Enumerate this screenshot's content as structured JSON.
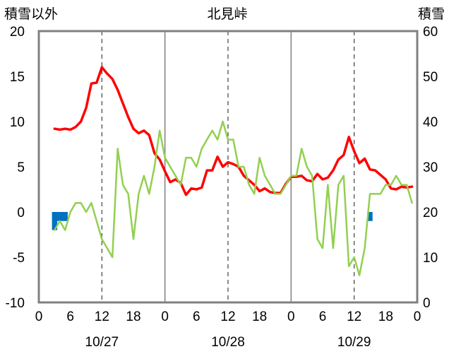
{
  "chart_data": {
    "type": "line",
    "title": "北見峠",
    "left_axis_label": "積雪以外",
    "right_axis_label": "積雪",
    "left_ylim": [
      -10,
      20
    ],
    "left_yticks": [
      "20",
      "15",
      "10",
      "5",
      "0",
      "-5",
      "-10"
    ],
    "right_ylim": [
      0,
      60
    ],
    "right_yticks": [
      "60",
      "50",
      "40",
      "30",
      "20",
      "10",
      "0"
    ],
    "xlim": [
      0,
      72
    ],
    "xtick_labels": [
      "0",
      "6",
      "12",
      "18",
      "0",
      "6",
      "12",
      "18",
      "0",
      "6",
      "12",
      "18",
      "0"
    ],
    "date_labels": [
      {
        "hour": 12,
        "text": "10/27"
      },
      {
        "hour": 36,
        "text": "10/28"
      },
      {
        "hour": 60,
        "text": "10/29"
      }
    ],
    "grid": "vertical lines: solid at 0h (day boundary), dashed at 12h",
    "series": [
      {
        "color": "#ff0000",
        "axis": "left",
        "x": [
          3,
          4,
          5,
          6,
          7,
          8,
          9,
          10,
          11,
          12,
          13,
          14,
          15,
          16,
          17,
          18,
          19,
          20,
          21,
          22,
          23,
          24,
          25,
          26,
          27,
          28,
          29,
          30,
          31,
          32,
          33,
          34,
          35,
          36,
          37,
          38,
          39,
          40,
          41,
          42,
          43,
          44,
          45,
          46,
          47,
          48,
          49,
          50,
          51,
          52,
          53,
          54,
          55,
          56,
          57,
          58,
          59,
          60,
          61,
          62,
          63,
          64,
          65,
          66,
          67,
          68,
          69,
          70,
          71
        ],
        "values": [
          9.2,
          9.1,
          9.2,
          9.1,
          9.4,
          10.0,
          11.5,
          14.2,
          14.3,
          16.0,
          15.3,
          14.7,
          13.5,
          12.0,
          10.5,
          9.2,
          8.7,
          9.0,
          8.5,
          6.5,
          5.8,
          4.5,
          3.3,
          3.6,
          3.2,
          1.9,
          2.6,
          2.5,
          2.7,
          4.6,
          4.6,
          6.1,
          5.0,
          5.5,
          5.3,
          5.0,
          4.0,
          3.5,
          3.0,
          2.3,
          2.6,
          2.2,
          2.1,
          2.1,
          3.1,
          3.9,
          3.9,
          4.0,
          3.5,
          3.4,
          4.2,
          3.6,
          3.8,
          4.6,
          5.8,
          6.3,
          8.3,
          6.7,
          5.4,
          5.9,
          4.7,
          4.6,
          4.1,
          3.6,
          2.6,
          2.5,
          2.8,
          2.7,
          2.8
        ]
      },
      {
        "color": "#92d050",
        "axis": "left",
        "x": [
          3,
          4,
          5,
          6,
          7,
          8,
          9,
          10,
          11,
          12,
          13,
          14,
          15,
          16,
          17,
          18,
          19,
          20,
          21,
          22,
          23,
          24,
          25,
          26,
          27,
          28,
          29,
          30,
          31,
          32,
          33,
          34,
          35,
          36,
          37,
          38,
          39,
          40,
          41,
          42,
          43,
          44,
          45,
          46,
          47,
          48,
          49,
          50,
          51,
          52,
          53,
          54,
          55,
          56,
          57,
          58,
          59,
          60,
          61,
          62,
          63,
          64,
          65,
          66,
          67,
          68,
          69,
          70,
          71
        ],
        "values": [
          -2,
          -1,
          -2,
          0,
          1,
          1,
          0,
          1,
          -1,
          -3,
          -4,
          -5,
          7,
          3,
          2,
          -3,
          2,
          4,
          2,
          5,
          9,
          6,
          5,
          4,
          3,
          6,
          6,
          5,
          7,
          8,
          9,
          8,
          10,
          8,
          8,
          5,
          5,
          3,
          2,
          6,
          4,
          3,
          2,
          2,
          3,
          4,
          4,
          7,
          5,
          4,
          -3,
          -4,
          3,
          -4,
          3,
          4,
          -6,
          -5,
          -7,
          -4,
          2,
          2,
          2,
          3,
          3,
          4,
          3,
          3,
          1
        ]
      },
      {
        "color": "#7030a0",
        "axis": "right",
        "x": [
          3,
          71
        ],
        "values": [
          0,
          0
        ]
      }
    ],
    "bars": {
      "color": "#0070c0",
      "axis": "left",
      "items": [
        {
          "x": 3,
          "value": -2
        },
        {
          "x": 4,
          "value": -1
        },
        {
          "x": 5,
          "value": -1
        },
        {
          "x": 63,
          "value": -1
        }
      ]
    }
  }
}
